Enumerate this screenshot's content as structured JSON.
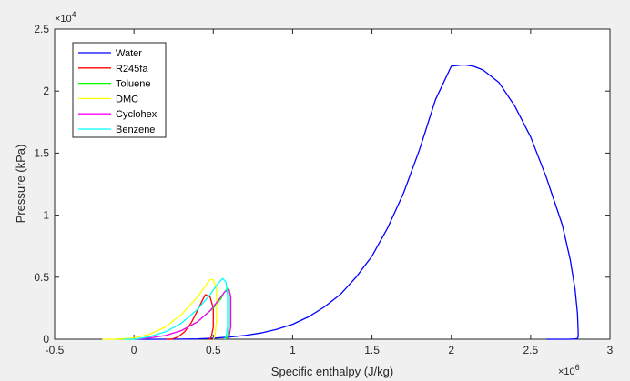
{
  "chart_data": {
    "type": "line",
    "title": "",
    "xlabel": "Specific enthalpy (J/kg)",
    "ylabel": "Pressure (kPa)",
    "x_exponent_label": "×10",
    "x_exponent_power": "6",
    "y_exponent_label": "×10",
    "y_exponent_power": "4",
    "xlim": [
      -0.5,
      3.0
    ],
    "ylim": [
      0,
      2.5
    ],
    "x_scale_note": "x in units of 1e6 J/kg",
    "y_scale_note": "y in units of 1e4 kPa",
    "xticks": [
      -0.5,
      0,
      0.5,
      1,
      1.5,
      2,
      2.5,
      3
    ],
    "xtick_labels": [
      "-0.5",
      "0",
      "0.5",
      "1",
      "1.5",
      "2",
      "2.5",
      "3"
    ],
    "yticks": [
      0,
      0.5,
      1,
      1.5,
      2,
      2.5
    ],
    "ytick_labels": [
      "0",
      "0.5",
      "1",
      "1.5",
      "2",
      "2.5"
    ],
    "grid": false,
    "legend_position": "top-left",
    "series": [
      {
        "name": "Water",
        "color": "#0000ff",
        "x": [
          0.0,
          0.1,
          0.2,
          0.3,
          0.4,
          0.5,
          0.6,
          0.7,
          0.8,
          0.9,
          1.0,
          1.1,
          1.2,
          1.3,
          1.4,
          1.5,
          1.6,
          1.7,
          1.8,
          1.9,
          2.0,
          2.06,
          2.09,
          2.14,
          2.2,
          2.3,
          2.4,
          2.5,
          2.6,
          2.7,
          2.75,
          2.78,
          2.795,
          2.8,
          2.8,
          2.795,
          2.78,
          2.74,
          2.66,
          2.6
        ],
        "y": [
          0.0,
          0.0,
          0.0,
          0.001,
          0.003,
          0.008,
          0.017,
          0.03,
          0.05,
          0.08,
          0.12,
          0.18,
          0.26,
          0.36,
          0.5,
          0.67,
          0.9,
          1.18,
          1.53,
          1.93,
          2.2,
          2.21,
          2.21,
          2.2,
          2.17,
          2.07,
          1.88,
          1.63,
          1.3,
          0.92,
          0.64,
          0.4,
          0.21,
          0.06,
          0.02,
          0.005,
          0.002,
          0.0,
          0.0,
          0.0
        ]
      },
      {
        "name": "R245fa",
        "color": "#ff0000",
        "x": [
          0.2,
          0.24,
          0.28,
          0.32,
          0.36,
          0.4,
          0.43,
          0.45,
          0.48,
          0.5,
          0.5,
          0.49,
          0.48,
          0.47
        ],
        "y": [
          0.0,
          0.0,
          0.02,
          0.06,
          0.13,
          0.23,
          0.31,
          0.36,
          0.34,
          0.25,
          0.1,
          0.03,
          0.0,
          0.0
        ]
      },
      {
        "name": "Toluene",
        "color": "#00ff00",
        "x": [
          -0.12,
          0.0,
          0.1,
          0.2,
          0.3,
          0.4,
          0.5,
          0.55,
          0.57,
          0.59,
          0.6,
          0.6,
          0.59,
          0.58
        ],
        "y": [
          0.0,
          0.0,
          0.01,
          0.03,
          0.07,
          0.14,
          0.25,
          0.33,
          0.38,
          0.41,
          0.36,
          0.1,
          0.02,
          0.0
        ]
      },
      {
        "name": "DMC",
        "color": "#ffff00",
        "x": [
          -0.2,
          -0.1,
          0.0,
          0.1,
          0.2,
          0.3,
          0.4,
          0.45,
          0.48,
          0.5,
          0.52,
          0.52,
          0.51,
          0.5
        ],
        "y": [
          0.0,
          0.0,
          0.01,
          0.04,
          0.1,
          0.2,
          0.34,
          0.43,
          0.48,
          0.48,
          0.4,
          0.15,
          0.02,
          0.0
        ]
      },
      {
        "name": "Cyclohex",
        "color": "#ff00ff",
        "x": [
          0.0,
          0.1,
          0.2,
          0.3,
          0.4,
          0.48,
          0.53,
          0.57,
          0.6,
          0.61,
          0.61,
          0.6,
          0.59
        ],
        "y": [
          0.0,
          0.01,
          0.03,
          0.07,
          0.14,
          0.23,
          0.31,
          0.38,
          0.4,
          0.34,
          0.1,
          0.02,
          0.0
        ]
      },
      {
        "name": "Benzene",
        "color": "#00ffff",
        "x": [
          -0.06,
          0.0,
          0.1,
          0.2,
          0.3,
          0.4,
          0.48,
          0.53,
          0.56,
          0.58,
          0.59,
          0.59,
          0.58,
          0.57
        ],
        "y": [
          0.0,
          0.0,
          0.02,
          0.06,
          0.13,
          0.24,
          0.36,
          0.45,
          0.49,
          0.46,
          0.35,
          0.1,
          0.02,
          0.0
        ]
      }
    ]
  }
}
